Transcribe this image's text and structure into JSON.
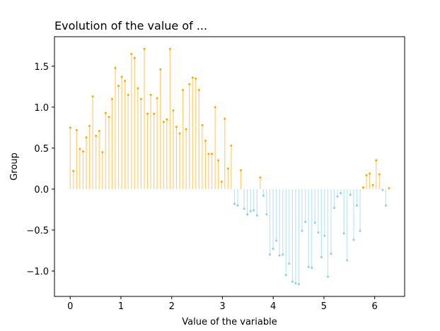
{
  "chart_data": {
    "type": "lollipop",
    "title": "Evolution of the value of ...",
    "xlabel": "Value of the variable",
    "ylabel": "Group",
    "xlim": [
      -0.31,
      6.59
    ],
    "ylim": [
      -1.31,
      1.86
    ],
    "xticks": [
      0,
      1,
      2,
      3,
      4,
      5,
      6
    ],
    "yticks": [
      -1.0,
      -0.5,
      0.0,
      0.5,
      1.0,
      1.5
    ],
    "ytick_labels": [
      "−1.0",
      "−0.5",
      "0.0",
      "0.5",
      "1.0",
      "1.5"
    ],
    "grid": false,
    "colors": {
      "positive": "#ffa500",
      "negative": "#87ceeb",
      "axes": "#000000"
    },
    "x": [
      0.0,
      0.063,
      0.127,
      0.19,
      0.254,
      0.317,
      0.381,
      0.444,
      0.508,
      0.571,
      0.635,
      0.698,
      0.762,
      0.825,
      0.888,
      0.952,
      1.015,
      1.079,
      1.142,
      1.206,
      1.269,
      1.333,
      1.396,
      1.46,
      1.523,
      1.587,
      1.65,
      1.713,
      1.777,
      1.84,
      1.904,
      1.967,
      2.031,
      2.094,
      2.158,
      2.221,
      2.285,
      2.348,
      2.412,
      2.475,
      2.538,
      2.602,
      2.665,
      2.729,
      2.792,
      2.856,
      2.919,
      2.983,
      3.046,
      3.11,
      3.173,
      3.237,
      3.3,
      3.363,
      3.427,
      3.49,
      3.554,
      3.617,
      3.681,
      3.744,
      3.808,
      3.871,
      3.935,
      3.998,
      4.062,
      4.125,
      4.188,
      4.252,
      4.315,
      4.379,
      4.442,
      4.506,
      4.569,
      4.633,
      4.696,
      4.76,
      4.823,
      4.887,
      4.95,
      5.013,
      5.077,
      5.14,
      5.204,
      5.267,
      5.331,
      5.394,
      5.458,
      5.521,
      5.585,
      5.648,
      5.712,
      5.775,
      5.838,
      5.902,
      5.965,
      6.029,
      6.092,
      6.156,
      6.219,
      6.283
    ],
    "values": [
      0.75,
      0.22,
      0.72,
      0.49,
      0.46,
      0.63,
      0.77,
      1.13,
      0.65,
      0.71,
      0.45,
      0.93,
      0.88,
      1.1,
      1.48,
      1.26,
      1.37,
      1.32,
      1.15,
      1.65,
      1.6,
      1.23,
      1.1,
      1.71,
      0.92,
      1.15,
      0.92,
      1.11,
      1.46,
      0.82,
      0.85,
      1.71,
      0.96,
      0.76,
      0.68,
      1.21,
      0.73,
      1.28,
      1.36,
      1.35,
      1.21,
      0.78,
      0.59,
      0.43,
      0.43,
      1.0,
      0.35,
      0.09,
      0.86,
      0.25,
      0.53,
      -0.18,
      -0.2,
      0.23,
      -0.24,
      -0.31,
      -0.27,
      -0.26,
      -0.32,
      0.14,
      -0.08,
      -0.31,
      -0.8,
      -0.73,
      -0.63,
      -0.81,
      -0.8,
      -1.05,
      -0.91,
      -1.13,
      -1.15,
      -1.16,
      -0.51,
      -0.4,
      -0.95,
      -0.96,
      -0.41,
      -0.53,
      -0.83,
      -0.57,
      -1.07,
      -0.79,
      -0.23,
      -0.09,
      -0.05,
      -0.54,
      -0.87,
      -0.07,
      -0.62,
      -0.2,
      -0.51,
      0.02,
      0.17,
      0.19,
      0.05,
      0.35,
      0.18,
      -0.01,
      -0.2,
      0.01
    ]
  }
}
